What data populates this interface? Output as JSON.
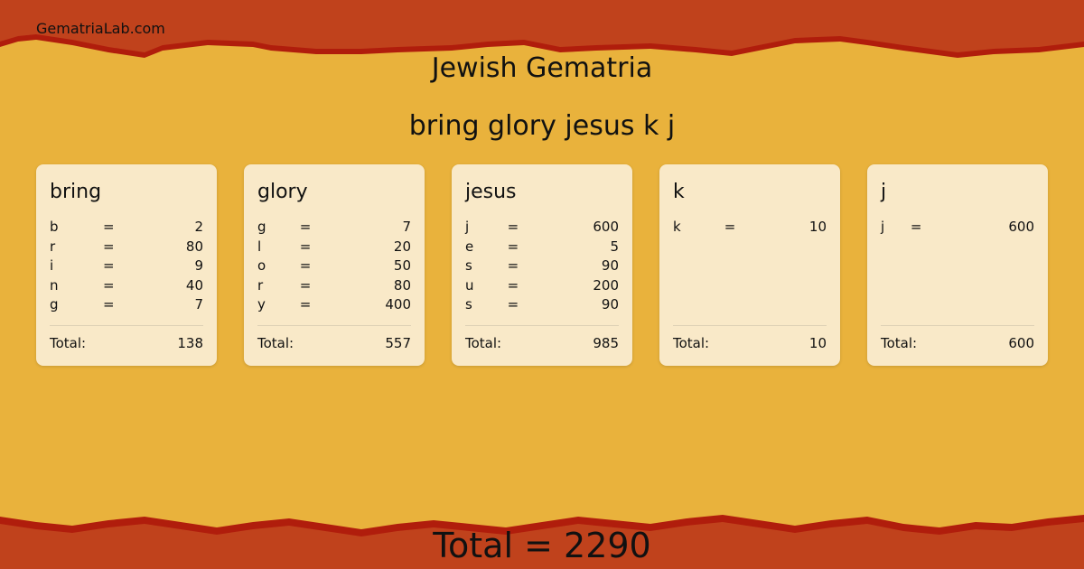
{
  "site": "GematriaLab.com",
  "title": "Jewish Gematria",
  "phrase": "bring glory jesus k j",
  "colors": {
    "background": "#e9b23c",
    "band": "#c0421c",
    "band_edge": "#b01d0c",
    "card": "#f9e9c8"
  },
  "total_label": "Total:",
  "cards": [
    {
      "word": "bring",
      "letters": [
        [
          "b",
          "=",
          "2"
        ],
        [
          "r",
          "=",
          "80"
        ],
        [
          "i",
          "=",
          "9"
        ],
        [
          "n",
          "=",
          "40"
        ],
        [
          "g",
          "=",
          "7"
        ]
      ],
      "total": "138"
    },
    {
      "word": "glory",
      "letters": [
        [
          "g",
          "=",
          "7"
        ],
        [
          "l",
          "=",
          "20"
        ],
        [
          "o",
          "=",
          "50"
        ],
        [
          "r",
          "=",
          "80"
        ],
        [
          "y",
          "=",
          "400"
        ]
      ],
      "total": "557"
    },
    {
      "word": "jesus",
      "letters": [
        [
          "j",
          "=",
          "600"
        ],
        [
          "e",
          "=",
          "5"
        ],
        [
          "s",
          "=",
          "90"
        ],
        [
          "u",
          "=",
          "200"
        ],
        [
          "s",
          "=",
          "90"
        ]
      ],
      "total": "985"
    },
    {
      "word": "k",
      "letters": [
        [
          "k",
          "=",
          "10"
        ]
      ],
      "total": "10"
    },
    {
      "word": "j",
      "letters": [
        [
          "j",
          "=",
          "600"
        ]
      ],
      "total": "600"
    }
  ],
  "grand_total": "Total = 2290"
}
